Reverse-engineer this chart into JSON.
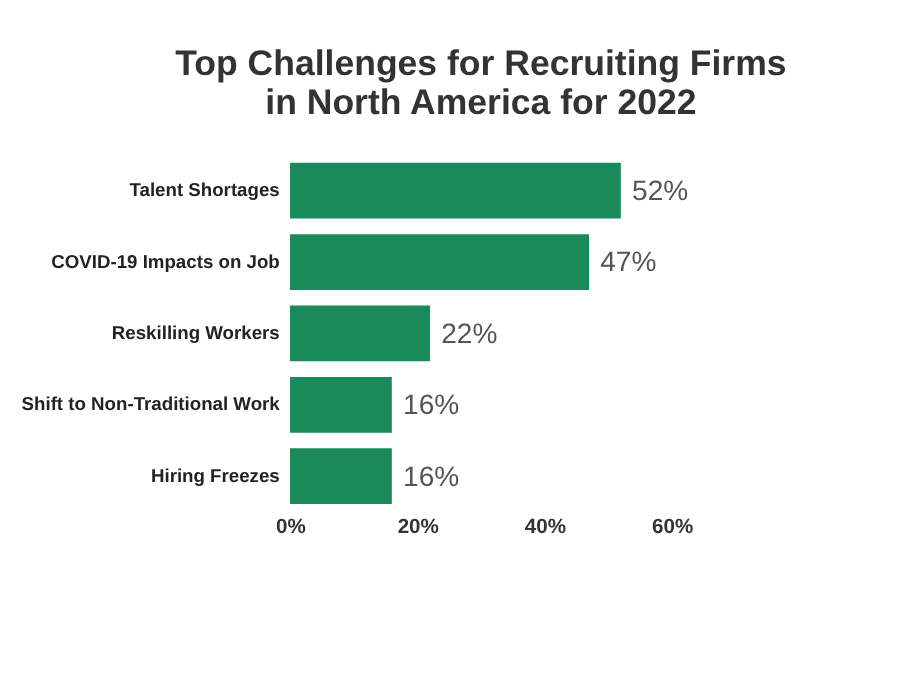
{
  "chart_data": {
    "type": "bar",
    "orientation": "horizontal",
    "title": [
      "Top Challenges for Recruiting Firms",
      "in North America for 2022"
    ],
    "categories": [
      "Talent Shortages",
      "COVID-19 Impacts on Job",
      "Reskilling Workers",
      "Shift to Non-Traditional Work",
      "Hiring Freezes"
    ],
    "values": [
      52,
      47,
      22,
      16,
      16
    ],
    "value_labels": [
      "52%",
      "47%",
      "22%",
      "16%",
      "16%"
    ],
    "color": "#1a8a5a",
    "xlim": [
      0,
      60
    ],
    "xticks": [
      {
        "value": 0,
        "label": "0%"
      },
      {
        "value": 20,
        "label": "20%"
      },
      {
        "value": 40,
        "label": "40%"
      },
      {
        "value": 60,
        "label": "60%"
      }
    ],
    "grid": false
  }
}
